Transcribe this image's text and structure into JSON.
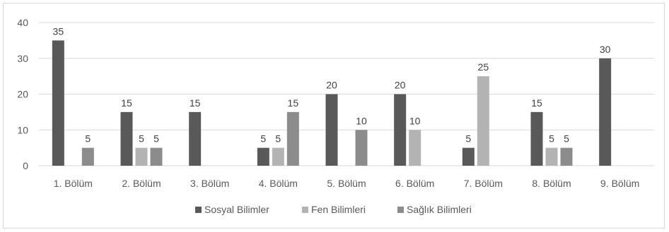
{
  "chart_data": {
    "type": "bar",
    "title": "",
    "xlabel": "",
    "ylabel": "",
    "ylim": [
      0,
      40
    ],
    "yticks": [
      0,
      10,
      20,
      30,
      40
    ],
    "grid": true,
    "legend_position": "bottom",
    "categories": [
      "1. Bölüm",
      "2. Bölüm",
      "3. Bölüm",
      "4. Bölüm",
      "5. Bölüm",
      "6. Bölüm",
      "7. Bölüm",
      "8. Bölüm",
      "9. Bölüm"
    ],
    "series": [
      {
        "name": "Sosyal Bilimler",
        "color": "#595959",
        "values": [
          35,
          15,
          15,
          5,
          20,
          20,
          5,
          15,
          30
        ]
      },
      {
        "name": "Fen Bilimleri",
        "color": "#b3b3b3",
        "values": [
          null,
          5,
          null,
          5,
          null,
          10,
          25,
          5,
          null
        ]
      },
      {
        "name": "Sağlık Bilimleri",
        "color": "#8c8c8c",
        "values": [
          5,
          5,
          null,
          15,
          10,
          null,
          null,
          5,
          null
        ]
      }
    ]
  }
}
